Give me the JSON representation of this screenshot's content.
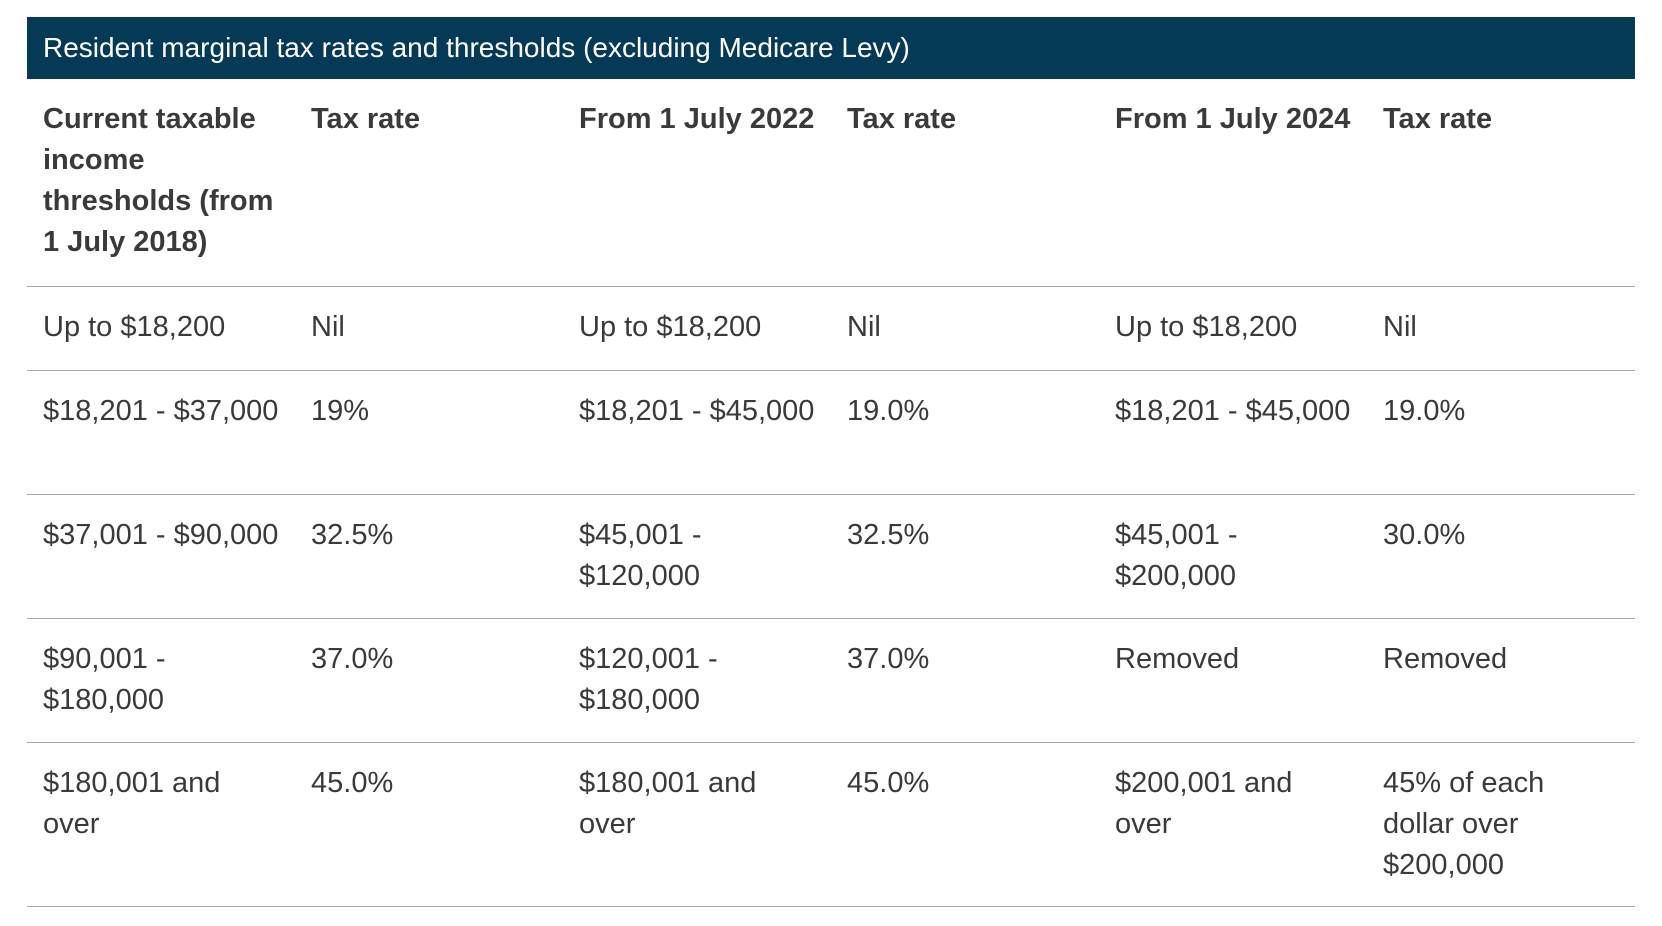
{
  "table": {
    "title": "Resident marginal tax rates and thresholds (excluding Medicare Levy)",
    "headers": [
      "Current taxable income thresholds (from 1 July 2018)",
      "Tax rate",
      "From 1 July 2022",
      "Tax rate",
      "From 1 July 2024",
      "Tax rate"
    ],
    "rows": [
      [
        "Up to $18,200",
        "Nil",
        "Up to $18,200",
        "Nil",
        "Up to $18,200",
        "Nil"
      ],
      [
        "$18,201 - $37,000",
        "19%",
        "$18,201 - $45,000",
        "19.0%",
        "$18,201 - $45,000",
        "19.0%"
      ],
      [
        "$37,001 - $90,000",
        "32.5%",
        "$45,001 - $120,000",
        "32.5%",
        "$45,001 - $200,000",
        "30.0%"
      ],
      [
        "$90,001 - $180,000",
        "37.0%",
        "$120,001 - $180,000",
        "37.0%",
        "Removed",
        "Removed"
      ],
      [
        "$180,001 and over",
        "45.0%",
        "$180,001 and over",
        "45.0%",
        "$200,001 and over",
        "45% of each dollar over $200,000"
      ]
    ]
  },
  "colors": {
    "title_bg": "#053a57",
    "title_text": "#ffffff",
    "body_text": "#3a3a3a",
    "rule": "#a8a8a8"
  }
}
